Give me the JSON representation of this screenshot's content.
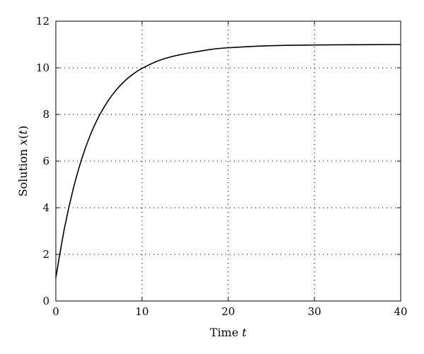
{
  "chart_data": {
    "type": "line",
    "xlabel": {
      "text": "Time ",
      "var": "t"
    },
    "ylabel": {
      "text": "Solution ",
      "var": "x",
      "open": "(",
      "arg": "t",
      "close": ")"
    },
    "xlim": [
      0,
      40
    ],
    "ylim": [
      0,
      12
    ],
    "xticks": [
      0,
      10,
      20,
      30,
      40
    ],
    "yticks": [
      0,
      2,
      4,
      6,
      8,
      10,
      12
    ],
    "xtick_labels": [
      "0",
      "10",
      "20",
      "30",
      "40"
    ],
    "ytick_labels": [
      "0",
      "2",
      "4",
      "6",
      "8",
      "10",
      "12"
    ],
    "grid": true,
    "series": [
      {
        "x": [
          0,
          1,
          2,
          3,
          4,
          5,
          6,
          7,
          8,
          9,
          10,
          12,
          14,
          16,
          18,
          20,
          25,
          30,
          35,
          40
        ],
        "y": [
          1.0,
          3.12,
          4.78,
          6.09,
          7.12,
          7.92,
          8.55,
          9.05,
          9.44,
          9.74,
          9.98,
          10.32,
          10.53,
          10.67,
          10.79,
          10.86,
          10.95,
          10.98,
          10.99,
          11.0
        ]
      }
    ]
  }
}
